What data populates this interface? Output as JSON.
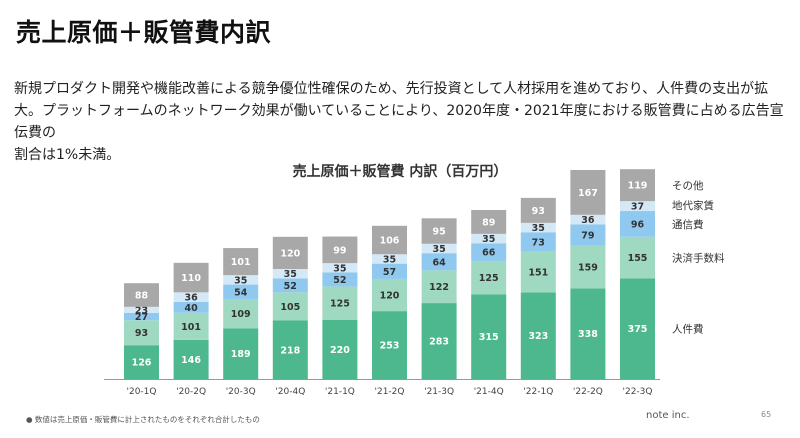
{
  "title": "売上原価＋販管費内訳",
  "description": [
    "新規プロダクト開発や機能改善による競争優位性確保のため、先行投資として人材採用を進めており、人件費の支出が拡",
    "大。プラットフォームのネットワーク効果が働いていることにより、2020年度・2021年度における販管費に占める広告宣伝費の",
    "割合は1%未満。"
  ],
  "footnote": "● 数値は売上原価・販管費に計上されたものをそれぞれ合計したもの",
  "brand": "note inc.",
  "page_number": "65",
  "chart_data": {
    "type": "bar",
    "stacked": true,
    "title": "売上原価＋販管費 内訳（百万円）",
    "categories": [
      "'20-1Q",
      "'20-2Q",
      "'20-3Q",
      "'20-4Q",
      "'21-1Q",
      "'21-2Q",
      "'21-3Q",
      "'21-4Q",
      "'22-1Q",
      "'22-2Q",
      "'22-3Q"
    ],
    "series": [
      {
        "name": "人件費",
        "color": "#4db88e",
        "label_color": "#ffffff",
        "values": [
          126,
          146,
          189,
          218,
          220,
          253,
          283,
          315,
          323,
          338,
          375
        ]
      },
      {
        "name": "決済手数料",
        "color": "#9fd9c2",
        "label_color": "#333333",
        "values": [
          93,
          101,
          109,
          105,
          125,
          120,
          122,
          125,
          151,
          159,
          155
        ]
      },
      {
        "name": "通信費",
        "color": "#8fc9ef",
        "label_color": "#333333",
        "values": [
          27,
          40,
          54,
          52,
          52,
          57,
          64,
          66,
          73,
          79,
          96
        ]
      },
      {
        "name": "地代家賃",
        "color": "#d4e8f6",
        "label_color": "#333333",
        "values": [
          23,
          36,
          35,
          35,
          35,
          35,
          35,
          35,
          35,
          36,
          37
        ]
      },
      {
        "name": "その他",
        "color": "#a8a8a8",
        "label_color": "#ffffff",
        "values": [
          88,
          110,
          101,
          120,
          99,
          106,
          95,
          89,
          93,
          167,
          119
        ]
      }
    ],
    "ylim": [
      0,
      820
    ],
    "legend_position": "right"
  }
}
